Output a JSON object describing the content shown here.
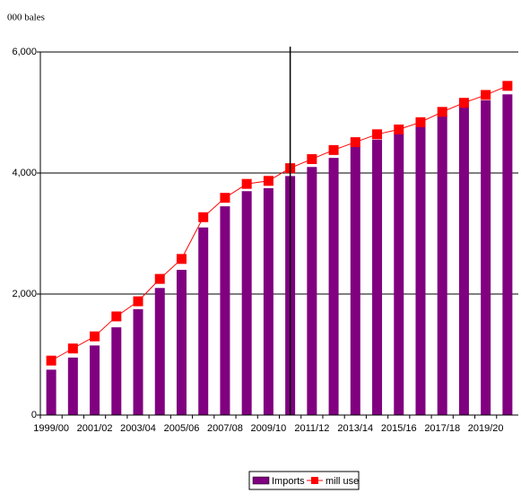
{
  "chart_data": {
    "type": "bar",
    "y_axis_label": "000 bales",
    "categories": [
      "1999/00",
      null,
      "2001/02",
      null,
      "2003/04",
      null,
      "2005/06",
      null,
      "2007/08",
      null,
      "2009/10",
      null,
      "2011/12",
      null,
      "2013/14",
      null,
      "2015/16",
      null,
      "2017/18",
      null,
      "2019/20",
      null
    ],
    "series": [
      {
        "name": "Imports",
        "type": "bar",
        "color": "#800080",
        "values": [
          750,
          950,
          1150,
          1450,
          1750,
          2100,
          2400,
          3100,
          3450,
          3700,
          3750,
          3950,
          4100,
          4250,
          4450,
          4550,
          4650,
          4800,
          4950,
          5100,
          5200,
          5300
        ]
      },
      {
        "name": "mill use",
        "type": "line",
        "color": "#ff0000",
        "values": [
          900,
          1100,
          1300,
          1630,
          1880,
          2250,
          2580,
          3270,
          3590,
          3820,
          3870,
          4080,
          4230,
          4380,
          4510,
          4640,
          4720,
          4840,
          5010,
          5160,
          5290,
          5440
        ]
      }
    ],
    "ylim": [
      0,
      6000
    ],
    "yticks": [
      0,
      {
        "value": 2000,
        "label": "2,000"
      },
      {
        "value": 4000,
        "label": "4,000"
      },
      {
        "value": 6000,
        "label": "6,000"
      }
    ],
    "grid": true
  }
}
